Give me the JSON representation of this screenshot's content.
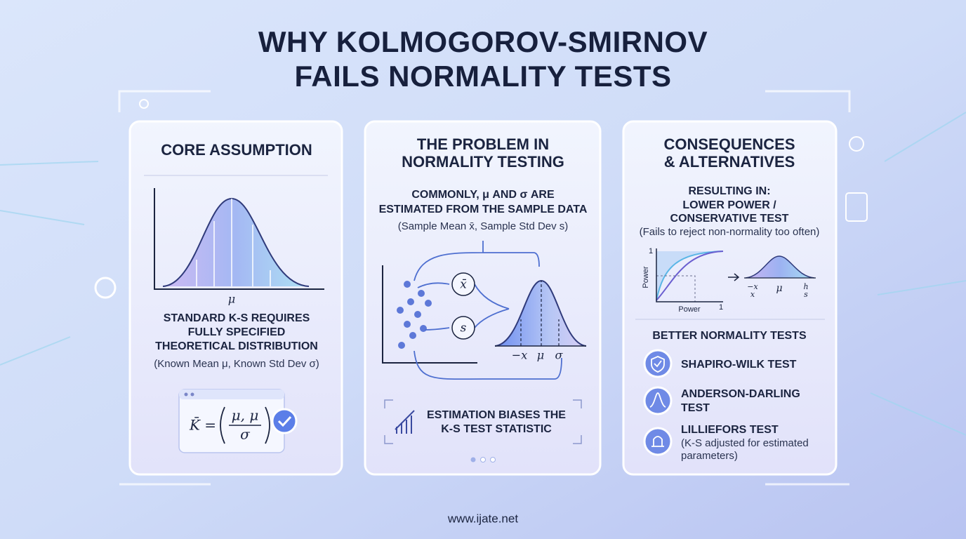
{
  "title": {
    "lines": [
      "WHY KOLMOGOROV-SMIRNOV",
      "FAILS NORMALITY TESTS"
    ]
  },
  "core": {
    "heading": "CORE ASSUMPTION",
    "curve_label": "μ",
    "text": [
      "STANDARD K-S REQUIRES",
      "FULLY SPECIFIED",
      "THEORETICAL DISTRIBUTION"
    ],
    "note": "(Known Mean μ, Known Std Dev σ)",
    "formula": {
      "lhs": "K̄ =",
      "numerator": "μ, μ",
      "denominator": "σ"
    }
  },
  "problem": {
    "heading": [
      "THE PROBLEM IN",
      "NORMALITY TESTING"
    ],
    "text": [
      "COMMONLY, μ AND σ ARE",
      "ESTIMATED FROM THE SAMPLE DATA"
    ],
    "note": "(Sample Mean x̄, Sample Std Dev s)",
    "nodes": [
      "x̄",
      "s"
    ],
    "axis_labels": [
      "−x",
      "μ",
      "σ"
    ],
    "callout": [
      "ESTIMATION BIASES THE",
      "K-S TEST STATISTIC"
    ]
  },
  "consequences": {
    "heading": [
      "CONSEQUENCES",
      "& ALTERNATIVES"
    ],
    "result": [
      "RESULTING IN:",
      "LOWER POWER /",
      "CONSERVATIVE TEST"
    ],
    "note": "(Fails to reject non-normality too often)",
    "power_chart": {
      "y_max": "1",
      "y_label": "Power",
      "x_label": "Power",
      "x_max": "1"
    },
    "mini_labels": [
      {
        "num": "−x",
        "den": "x"
      },
      "μ",
      {
        "num": "h",
        "den": "s"
      }
    ],
    "tests_heading": "BETTER NORMALITY TESTS",
    "tests": [
      {
        "name": [
          "SHAPIRO-WILK TEST"
        ]
      },
      {
        "name": [
          "ANDERSON-DARLING",
          "TEST"
        ]
      },
      {
        "name": [
          "LILLIEFORS TEST"
        ],
        "note": [
          "(K-S adjusted for estimated",
          "parameters)"
        ]
      }
    ]
  },
  "footer": "www.ijate.net"
}
